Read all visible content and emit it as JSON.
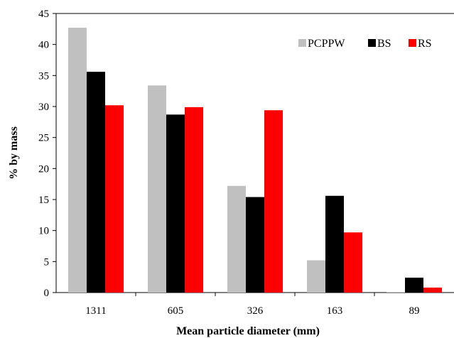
{
  "chart_data": {
    "type": "bar",
    "categories": [
      "1311",
      "605",
      "326",
      "163",
      "89"
    ],
    "series": [
      {
        "name": "PCPPW",
        "color": "#c0c0c0",
        "values": [
          42.7,
          33.4,
          17.2,
          5.2,
          0.1
        ]
      },
      {
        "name": "BS",
        "color": "#000000",
        "values": [
          35.6,
          28.7,
          15.4,
          15.6,
          2.4
        ]
      },
      {
        "name": "RS",
        "color": "#ff0000",
        "values": [
          30.2,
          29.9,
          29.4,
          9.7,
          0.8
        ]
      }
    ],
    "title": "",
    "xlabel": "Mean particle diameter (mm)",
    "ylabel": "% by mass",
    "ylim": [
      0,
      45
    ],
    "yticks": [
      0,
      5,
      10,
      15,
      20,
      25,
      30,
      35,
      40,
      45
    ],
    "grid": false,
    "legend_position": "top-right"
  }
}
